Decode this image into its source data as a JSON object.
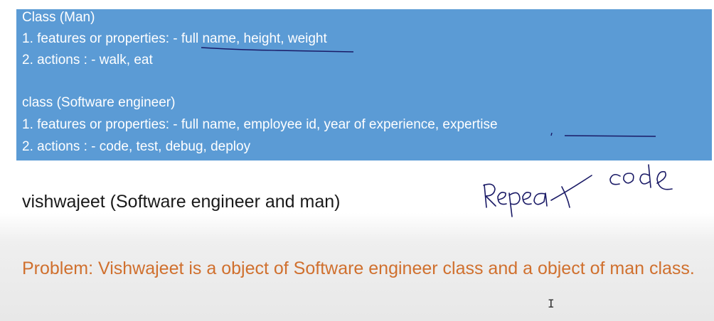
{
  "slide": {
    "box_color": "#5b9bd5",
    "box_lines": [
      "Class (Man)",
      "1. features or properties: - full name, height, weight",
      "2. actions : - walk, eat",
      "class (Software engineer)",
      "1. features or properties: - full name, employee id, year of experience, expertise",
      "2. actions : - code, test, debug, deploy"
    ],
    "subject_line": "vishwajeet (Software engineer and man)",
    "problem_text": "Problem: Vishwajeet is a object of Software engineer class and a object of man class.",
    "problem_color": "#d0702e",
    "handwriting": "Repeat code",
    "cursor_icon": "text-cursor-icon"
  }
}
